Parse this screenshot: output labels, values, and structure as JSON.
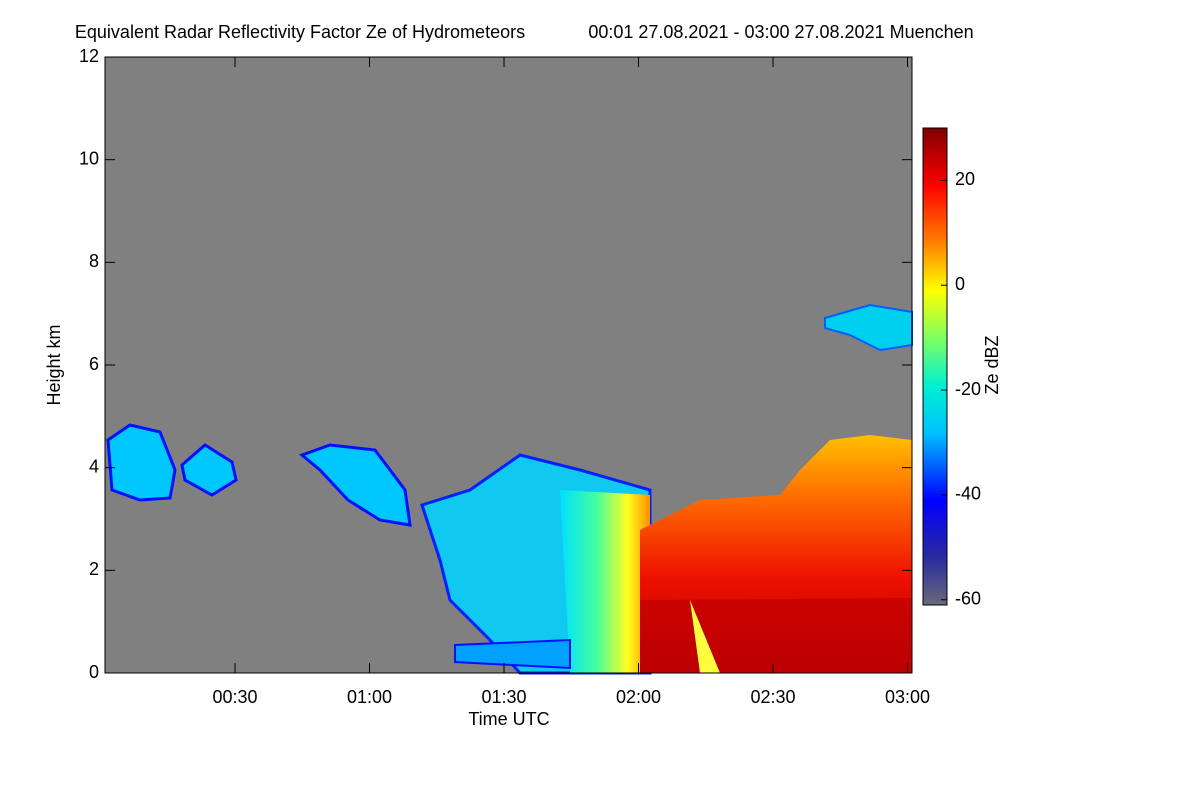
{
  "chart_data": {
    "type": "time-height",
    "title": "Equivalent Radar Reflectivity Factor Ze of Hydrometeors",
    "subtitle": "00:01 27.08.2021 - 03:00 27.08.2021 Muenchen",
    "xlabel": "Time UTC",
    "ylabel": "Height km",
    "xlim": [
      1,
      181
    ],
    "xticks": [
      {
        "value": 30,
        "label": "00:30"
      },
      {
        "value": 60,
        "label": "01:00"
      },
      {
        "value": 90,
        "label": "01:30"
      },
      {
        "value": 120,
        "label": "02:00"
      },
      {
        "value": 150,
        "label": "02:30"
      },
      {
        "value": 180,
        "label": "03:00"
      }
    ],
    "ylim": [
      0,
      12
    ],
    "yticks": [
      0,
      2,
      4,
      6,
      8,
      10,
      12
    ],
    "colorbar": {
      "label": "Ze dBZ",
      "lim": [
        -61,
        30
      ],
      "ticks": [
        -60,
        -40,
        -20,
        0,
        20
      ]
    }
  }
}
